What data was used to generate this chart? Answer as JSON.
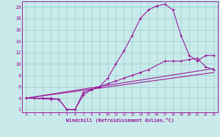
{
  "xlabel": "Windchill (Refroidissement éolien,°C)",
  "xlim": [
    -0.5,
    23.5
  ],
  "ylim": [
    1.5,
    21
  ],
  "xticks": [
    0,
    1,
    2,
    3,
    4,
    5,
    6,
    7,
    8,
    9,
    10,
    11,
    12,
    13,
    14,
    15,
    16,
    17,
    18,
    19,
    20,
    21,
    22,
    23
  ],
  "yticks": [
    2,
    4,
    6,
    8,
    10,
    12,
    14,
    16,
    18,
    20
  ],
  "bg_color": "#c8eaea",
  "line_color": "#991199",
  "grid_color": "#99cccc",
  "line1_x": [
    0,
    1,
    2,
    3,
    4,
    5,
    6,
    7,
    8,
    9,
    10,
    11,
    12,
    13,
    14,
    15,
    16,
    17,
    18,
    19,
    20,
    21,
    22,
    23
  ],
  "line1_y": [
    4,
    4,
    4,
    4,
    3.8,
    2,
    2,
    5,
    5.5,
    6,
    7.5,
    10,
    12.3,
    15,
    18,
    19.5,
    20.2,
    20.5,
    19.5,
    15,
    11.5,
    10.5,
    11.5,
    11.5
  ],
  "line2_x": [
    0,
    3,
    4,
    5,
    6,
    7,
    8,
    9,
    10,
    11,
    12,
    13,
    14,
    15,
    17,
    18,
    19,
    20,
    21,
    22,
    23
  ],
  "line2_y": [
    4,
    3.8,
    3.8,
    2,
    2,
    4.5,
    5.5,
    6,
    6.5,
    7,
    7.5,
    8,
    8.5,
    9,
    10.5,
    10.5,
    10.5,
    10.8,
    11,
    9.5,
    9
  ],
  "line3_x": [
    0,
    23
  ],
  "line3_y": [
    4,
    8.5
  ],
  "line4_x": [
    0,
    23
  ],
  "line4_y": [
    4,
    9.2
  ]
}
